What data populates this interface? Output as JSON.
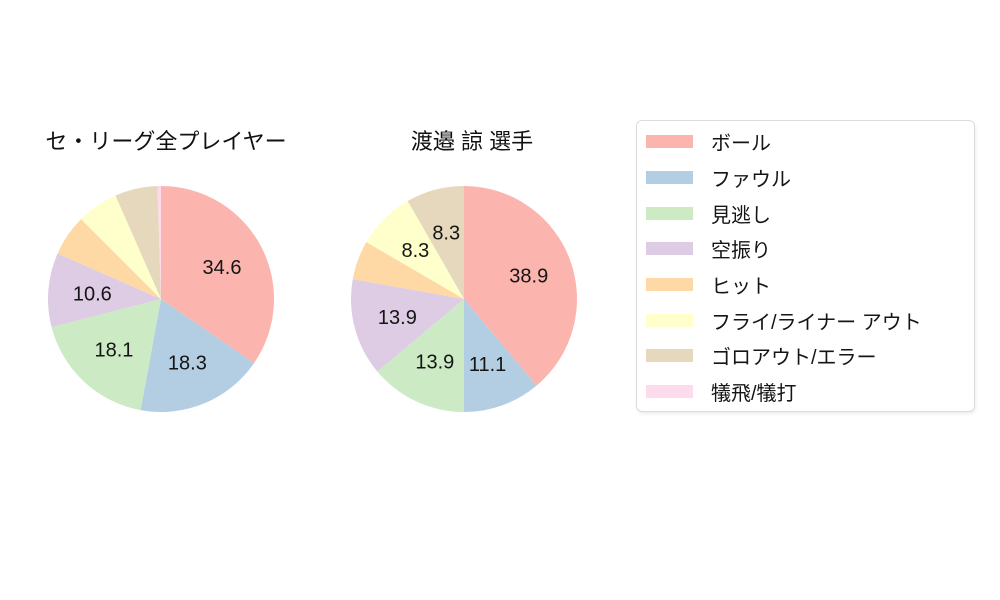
{
  "page": {
    "background": "#ffffff"
  },
  "palette": {
    "ball": "#fbb4ae",
    "foul": "#b3cde3",
    "called_strike": "#ccebc5",
    "swinging_strike": "#decbe4",
    "hit": "#fed9a6",
    "fly_liner_out": "#ffffcc",
    "ground_out_error": "#e5d8bd",
    "sacrifice": "#fddaec"
  },
  "legend": {
    "border_color": "#dcdcdc",
    "background": "#ffffff",
    "items": [
      {
        "label": "ボール",
        "color": "#fbb4ae"
      },
      {
        "label": "ファウル",
        "color": "#b3cde3"
      },
      {
        "label": "見逃し",
        "color": "#ccebc5"
      },
      {
        "label": "空振り",
        "color": "#decbe4"
      },
      {
        "label": "ヒット",
        "color": "#fed9a6"
      },
      {
        "label": "フライ/ライナー アウト",
        "color": "#ffffcc"
      },
      {
        "label": "ゴロアウト/エラー",
        "color": "#e5d8bd"
      },
      {
        "label": "犠飛/犠打",
        "color": "#fddaec"
      }
    ]
  },
  "chart_data": [
    {
      "type": "pie",
      "title": "セ・リーグ全プレイヤー",
      "start_angle_deg": 0,
      "direction": "clockwise",
      "label_radius_ratio": 0.61,
      "slices": [
        {
          "name": "ボール",
          "value": 34.6,
          "label": "34.6",
          "color": "#fbb4ae"
        },
        {
          "name": "ファウル",
          "value": 18.3,
          "label": "18.3",
          "color": "#b3cde3"
        },
        {
          "name": "見逃し",
          "value": 18.1,
          "label": "18.1",
          "color": "#ccebc5"
        },
        {
          "name": "空振り",
          "value": 10.6,
          "label": "10.6",
          "color": "#decbe4"
        },
        {
          "name": "ヒット",
          "value": 5.9,
          "label": "",
          "color": "#fed9a6"
        },
        {
          "name": "フライ/ライナー アウト",
          "value": 5.9,
          "label": "",
          "color": "#ffffcc"
        },
        {
          "name": "ゴロアウト/エラー",
          "value": 6.1,
          "label": "",
          "color": "#e5d8bd"
        },
        {
          "name": "犠飛/犠打",
          "value": 0.5,
          "label": "",
          "color": "#fddaec"
        }
      ]
    },
    {
      "type": "pie",
      "title": "渡邉 諒 選手",
      "start_angle_deg": 0,
      "direction": "clockwise",
      "label_radius_ratio": 0.61,
      "slices": [
        {
          "name": "ボール",
          "value": 38.9,
          "label": "38.9",
          "color": "#fbb4ae"
        },
        {
          "name": "ファウル",
          "value": 11.1,
          "label": "11.1",
          "color": "#b3cde3"
        },
        {
          "name": "見逃し",
          "value": 13.9,
          "label": "13.9",
          "color": "#ccebc5"
        },
        {
          "name": "空振り",
          "value": 13.9,
          "label": "13.9",
          "color": "#decbe4"
        },
        {
          "name": "ヒット",
          "value": 5.6,
          "label": "",
          "color": "#fed9a6"
        },
        {
          "name": "フライ/ライナー アウト",
          "value": 8.3,
          "label": "8.3",
          "color": "#ffffcc"
        },
        {
          "name": "ゴロアウト/エラー",
          "value": 8.3,
          "label": "8.3",
          "color": "#e5d8bd"
        },
        {
          "name": "犠飛/犠打",
          "value": 0,
          "label": "",
          "color": "#fddaec"
        }
      ]
    }
  ]
}
